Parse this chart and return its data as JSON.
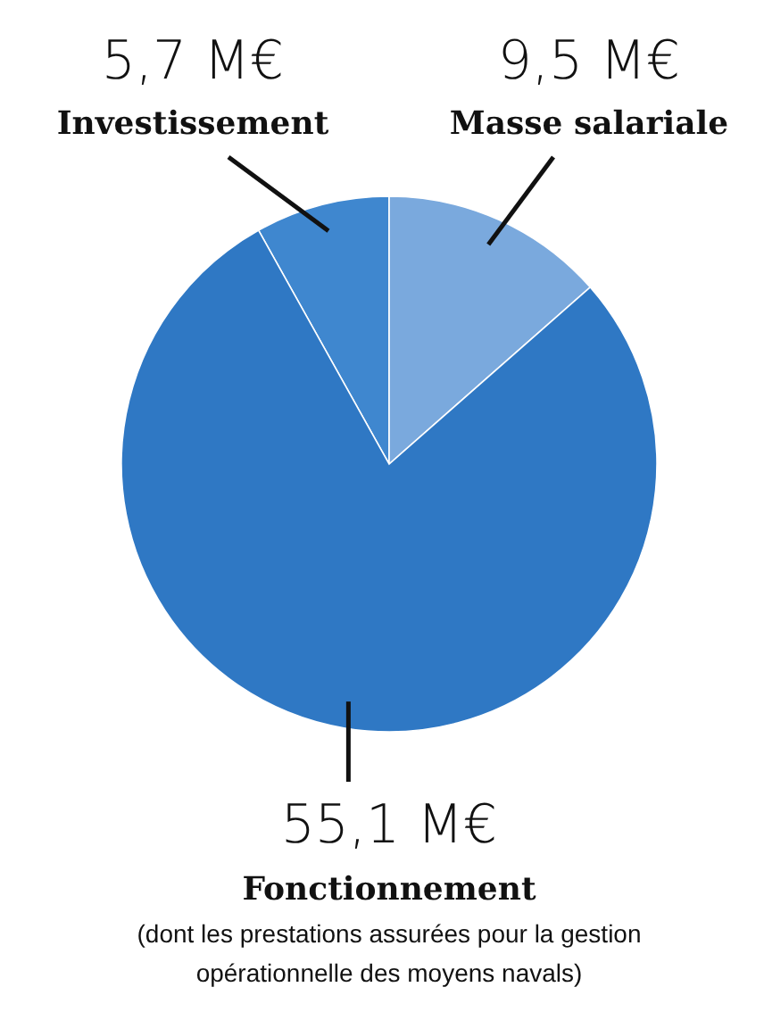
{
  "chart_data": {
    "type": "pie",
    "categories": [
      "Investissement",
      "Masse salariale",
      "Fonctionnement"
    ],
    "values": [
      5.7,
      9.5,
      55.1
    ],
    "value_labels": [
      "5,7 M€",
      "9,5 M€",
      "55,1 M€"
    ],
    "colors": [
      "#3f87cf",
      "#7aa9dd",
      "#2f78c4"
    ],
    "annotations": [
      "(dont les prestations assurées pour la gestion opérationnelle des moyens navals)"
    ]
  }
}
